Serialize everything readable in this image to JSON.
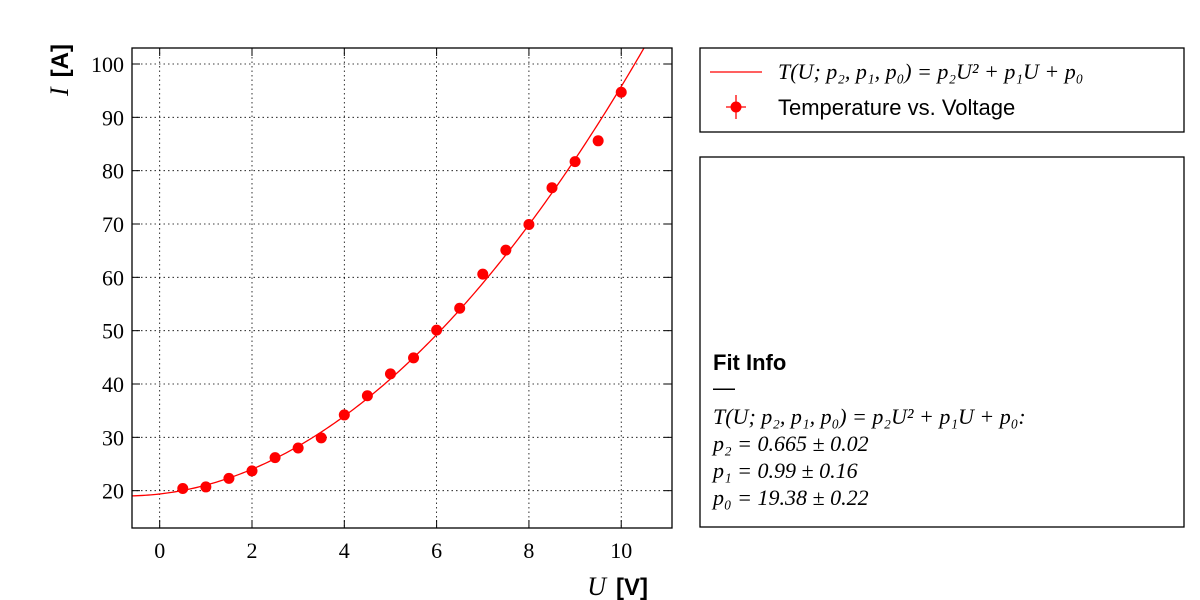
{
  "chart_data": {
    "type": "scatter",
    "title": "",
    "xlabel_var": "U",
    "xlabel_unit": "[V]",
    "ylabel_var": "I",
    "ylabel_unit": "[A]",
    "xlim": [
      -0.6,
      11.1
    ],
    "ylim": [
      13,
      103
    ],
    "xticks": [
      0,
      2,
      4,
      6,
      8,
      10
    ],
    "yticks": [
      20,
      30,
      40,
      50,
      60,
      70,
      80,
      90,
      100
    ],
    "grid": true,
    "series": [
      {
        "name": "Temperature vs. Voltage",
        "kind": "points",
        "color": "#ff0000",
        "x": [
          0.5,
          1.0,
          1.5,
          2.0,
          2.5,
          3.0,
          3.5,
          4.0,
          4.5,
          5.0,
          5.5,
          6.0,
          6.5,
          7.0,
          7.5,
          8.0,
          8.5,
          9.0,
          9.5,
          10.0
        ],
        "y": [
          20.4,
          20.7,
          22.3,
          23.7,
          26.2,
          28.0,
          29.9,
          34.2,
          37.8,
          41.9,
          44.9,
          50.1,
          54.2,
          60.6,
          65.1,
          69.9,
          76.8,
          81.7,
          85.6,
          94.7
        ]
      },
      {
        "name": "T(U; p₂, p₁, p₀) = p₂U² + p₁U + p₀",
        "kind": "fit",
        "color": "#ff0000",
        "coefficients": {
          "p2": 0.665,
          "p1": 0.99,
          "p0": 19.38
        }
      }
    ],
    "legend": {
      "placement": "top-right-outside",
      "entries": [
        "T(U; p₂, p₁, p₀) = p₂U² + p₁U + p₀",
        "Temperature vs. Voltage"
      ]
    },
    "fit_info": {
      "title": "Fit Info",
      "separator": "—",
      "lines": [
        "T(U; p₂, p₁, p₀) = p₂U² + p₁U + p₀:",
        "p₂ = 0.665 ± 0.02",
        "p₁ = 0.99 ± 0.16",
        "p₀ = 19.38 ± 0.22"
      ]
    }
  }
}
